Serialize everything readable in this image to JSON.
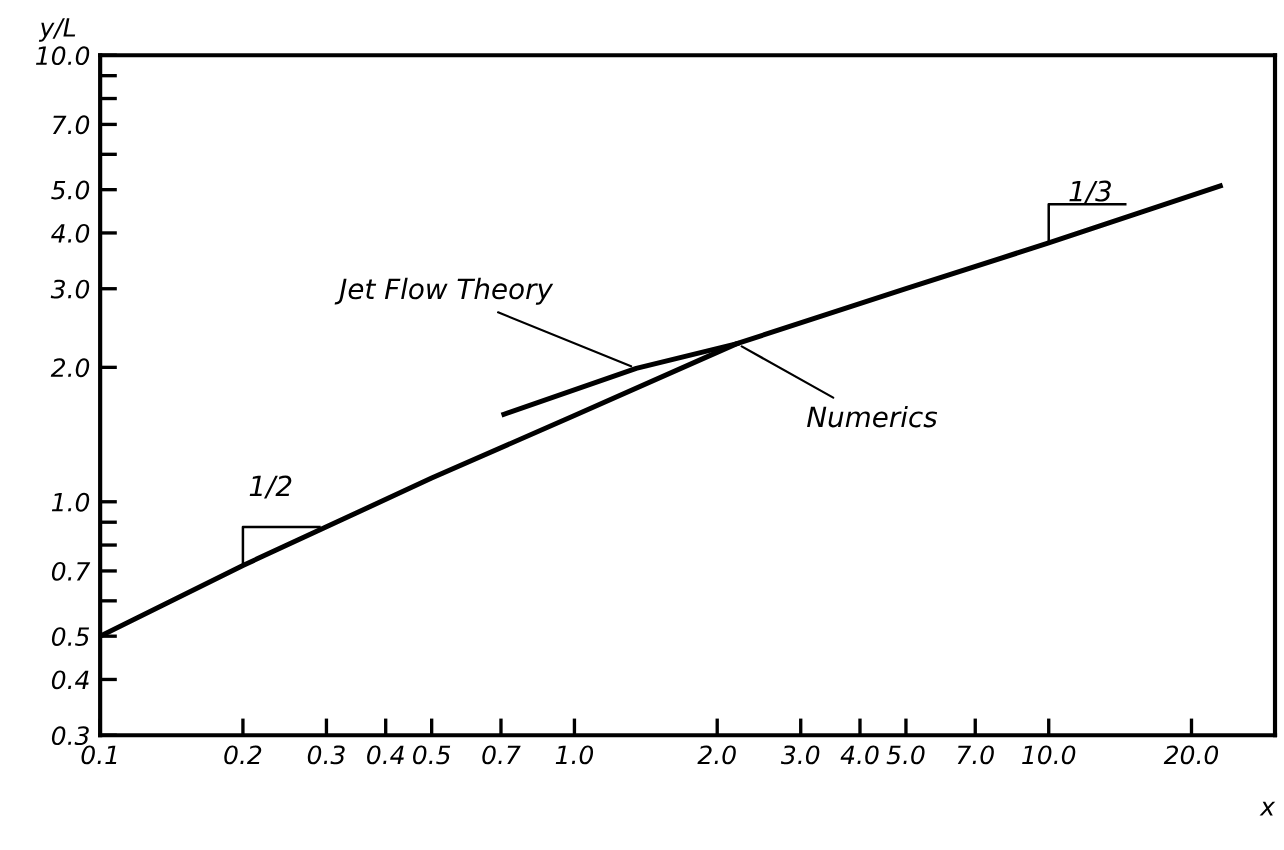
{
  "chart_data": {
    "type": "line",
    "xlabel": "x",
    "ylabel": "y/L",
    "log": "xy",
    "grid": false,
    "marker": "none",
    "line_style": "solid",
    "xlim": [
      0.1,
      30
    ],
    "ylim": [
      0.3,
      10
    ],
    "xticks": [
      {
        "value": 0.1,
        "label": "0.1"
      },
      {
        "value": 0.2,
        "label": "0.2"
      },
      {
        "value": 0.3,
        "label": "0.3"
      },
      {
        "value": 0.4,
        "label": "0.4"
      },
      {
        "value": 0.5,
        "label": "0.5"
      },
      {
        "value": 0.7,
        "label": "0.7"
      },
      {
        "value": 1,
        "label": "1.0"
      },
      {
        "value": 2,
        "label": "2.0"
      },
      {
        "value": 3,
        "label": "3.0"
      },
      {
        "value": 4,
        "label": "4.0"
      },
      {
        "value": 5,
        "label": "5.0"
      },
      {
        "value": 7,
        "label": "7.0"
      },
      {
        "value": 10,
        "label": "10.0"
      },
      {
        "value": 20,
        "label": "20.0"
      }
    ],
    "yticks": [
      {
        "value": 0.3,
        "label": "0.3"
      },
      {
        "value": 0.4,
        "label": "0.4"
      },
      {
        "value": 0.5,
        "label": "0.5"
      },
      {
        "value": 0.6,
        "label": null
      },
      {
        "value": 0.7,
        "label": "0.7"
      },
      {
        "value": 0.8,
        "label": null
      },
      {
        "value": 0.9,
        "label": null
      },
      {
        "value": 1,
        "label": "1.0"
      },
      {
        "value": 2,
        "label": "2.0"
      },
      {
        "value": 3,
        "label": "3.0"
      },
      {
        "value": 4,
        "label": "4.0"
      },
      {
        "value": 5,
        "label": "5.0"
      },
      {
        "value": 6,
        "label": null
      },
      {
        "value": 7,
        "label": "7.0"
      },
      {
        "value": 8,
        "label": null
      },
      {
        "value": 9,
        "label": null
      },
      {
        "value": 10,
        "label": "10.0"
      }
    ],
    "series": [
      {
        "color": "#000000",
        "x": [
          0.1,
          0.2,
          0.5,
          1.0,
          2.2,
          5,
          10,
          23
        ],
        "values": [
          0.5,
          0.72,
          1.13,
          1.56,
          2.26,
          3.0,
          3.8,
          5.1
        ]
      },
      {
        "color": "#000000",
        "x": [
          0.71,
          1.35,
          2.2
        ],
        "values": [
          1.57,
          1.99,
          2.26
        ]
      }
    ],
    "annotations": [
      {
        "text": "Jet Flow Theory",
        "x": 1.35,
        "y": 1.99
      },
      {
        "text": "Numerics",
        "x": 2.2,
        "y": 2.26
      },
      {
        "text": "1/2",
        "x": 0.2,
        "y": 0.72
      },
      {
        "text": "1/3",
        "x": 10,
        "y": 3.8
      }
    ]
  }
}
